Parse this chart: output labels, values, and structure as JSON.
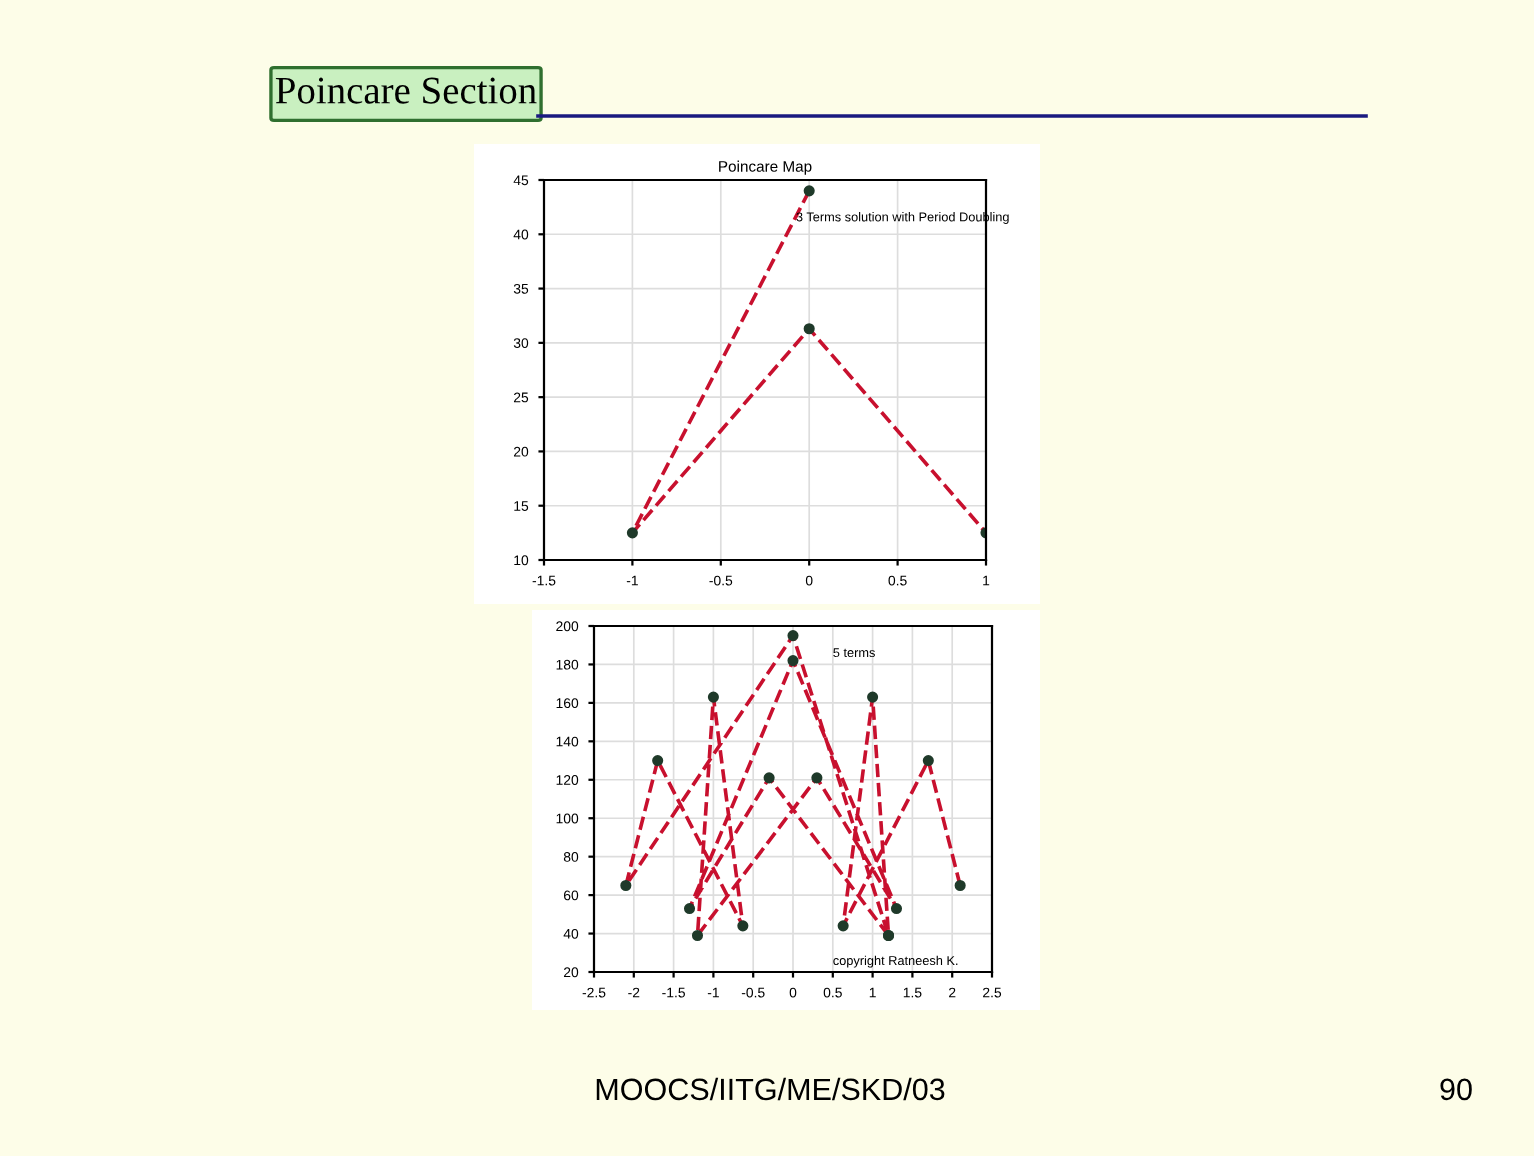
{
  "chart_data": [
    {
      "type": "other",
      "title": "Poincare Section",
      "annotations": [
        "MOOCS/IITG/ME/SKD/03",
        "90"
      ]
    },
    {
      "type": "line",
      "title": "Poincare Map",
      "annotations": [
        "3 Terms solution with Period Doubling"
      ],
      "series": [
        {
          "color": "#c8102e",
          "x": [
            0,
            -1,
            0,
            1
          ],
          "values": [
            44,
            12.5,
            31.3,
            12.5
          ]
        }
      ],
      "marker": "circle",
      "line_style": "dashed",
      "grid": true,
      "xlim": [
        -1.5,
        1
      ],
      "xticks": [
        -1.5,
        -1,
        -0.5,
        0,
        0.5,
        1
      ],
      "ylim": [
        10,
        45
      ],
      "yticks": [
        10,
        15,
        20,
        25,
        30,
        35,
        40,
        45
      ]
    },
    {
      "type": "line",
      "annotations": [
        "5 terms",
        "copyright Ratneesh K."
      ],
      "series": [
        {
          "color": "#c8102e",
          "x": [
            2.1,
            1.7,
            0.63,
            1,
            1.2,
            -0.3,
            -1.3,
            0,
            1.3,
            0.3,
            -1.2,
            -1,
            -0.63,
            -1.7,
            -2.1,
            0,
            1.2
          ],
          "values": [
            65,
            130,
            44,
            163,
            39,
            121,
            53,
            182,
            53,
            121,
            39,
            163,
            44,
            130,
            65,
            195,
            39
          ]
        }
      ],
      "marker": "circle",
      "line_style": "dashed",
      "grid": true,
      "xlim": [
        -2.5,
        2.5
      ],
      "xticks": [
        -2.5,
        -2,
        -1.5,
        -1,
        -0.5,
        0,
        0.5,
        1,
        1.5,
        2,
        2.5
      ],
      "ylim": [
        20,
        200
      ],
      "yticks": [
        20,
        40,
        60,
        80,
        100,
        120,
        140,
        160,
        180,
        200
      ]
    }
  ]
}
